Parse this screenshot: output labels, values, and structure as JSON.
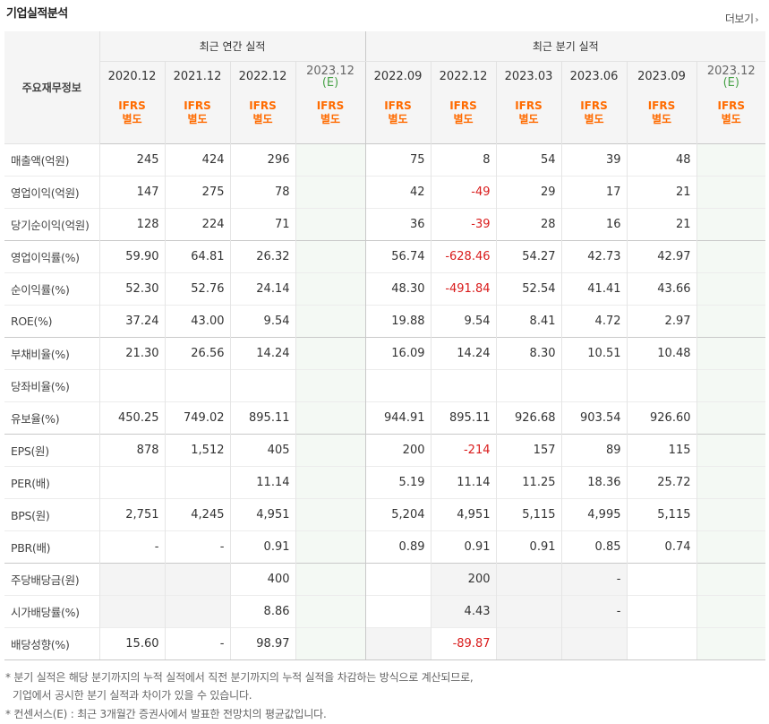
{
  "header": {
    "title": "기업실적분석",
    "more_label": "더보기",
    "more_arrow": "›"
  },
  "table": {
    "label_header": "주요재무정보",
    "groups": [
      "최근 연간 실적",
      "최근 분기 실적"
    ],
    "periods": [
      {
        "p": "2020.12",
        "e": ""
      },
      {
        "p": "2021.12",
        "e": ""
      },
      {
        "p": "2022.12",
        "e": ""
      },
      {
        "p": "2023.12",
        "e": "(E)"
      },
      {
        "p": "2022.09",
        "e": ""
      },
      {
        "p": "2022.12",
        "e": ""
      },
      {
        "p": "2023.03",
        "e": ""
      },
      {
        "p": "2023.06",
        "e": ""
      },
      {
        "p": "2023.09",
        "e": ""
      },
      {
        "p": "2023.12",
        "e": "(E)"
      }
    ],
    "ifrs": [
      "IFRS",
      "IFRS",
      "IFRS",
      "IFRS",
      "IFRS",
      "IFRS",
      "IFRS",
      "IFRS",
      "IFRS",
      "IFRS"
    ],
    "ifrs_sub": "별도",
    "rows": [
      {
        "label": "매출액(억원)",
        "values": [
          "245",
          "424",
          "296",
          "",
          "75",
          "8",
          "54",
          "39",
          "48",
          ""
        ]
      },
      {
        "label": "영업이익(억원)",
        "values": [
          "147",
          "275",
          "78",
          "",
          "42",
          "-49",
          "29",
          "17",
          "21",
          ""
        ]
      },
      {
        "label": "당기순이익(억원)",
        "values": [
          "128",
          "224",
          "71",
          "",
          "36",
          "-39",
          "28",
          "16",
          "21",
          ""
        ]
      },
      {
        "label": "영업이익률(%)",
        "values": [
          "59.90",
          "64.81",
          "26.32",
          "",
          "56.74",
          "-628.46",
          "54.27",
          "42.73",
          "42.97",
          ""
        ]
      },
      {
        "label": "순이익률(%)",
        "values": [
          "52.30",
          "52.76",
          "24.14",
          "",
          "48.30",
          "-491.84",
          "52.54",
          "41.41",
          "43.66",
          ""
        ]
      },
      {
        "label": "ROE(%)",
        "values": [
          "37.24",
          "43.00",
          "9.54",
          "",
          "19.88",
          "9.54",
          "8.41",
          "4.72",
          "2.97",
          ""
        ]
      },
      {
        "label": "부채비율(%)",
        "values": [
          "21.30",
          "26.56",
          "14.24",
          "",
          "16.09",
          "14.24",
          "8.30",
          "10.51",
          "10.48",
          ""
        ]
      },
      {
        "label": "당좌비율(%)",
        "values": [
          "",
          "",
          "",
          "",
          "",
          "",
          "",
          "",
          "",
          ""
        ]
      },
      {
        "label": "유보율(%)",
        "values": [
          "450.25",
          "749.02",
          "895.11",
          "",
          "944.91",
          "895.11",
          "926.68",
          "903.54",
          "926.60",
          ""
        ]
      },
      {
        "label": "EPS(원)",
        "values": [
          "878",
          "1,512",
          "405",
          "",
          "200",
          "-214",
          "157",
          "89",
          "115",
          ""
        ]
      },
      {
        "label": "PER(배)",
        "values": [
          "",
          "",
          "11.14",
          "",
          "5.19",
          "11.14",
          "11.25",
          "18.36",
          "25.72",
          ""
        ]
      },
      {
        "label": "BPS(원)",
        "values": [
          "2,751",
          "4,245",
          "4,951",
          "",
          "5,204",
          "4,951",
          "5,115",
          "4,995",
          "5,115",
          ""
        ]
      },
      {
        "label": "PBR(배)",
        "values": [
          "-",
          "-",
          "0.91",
          "",
          "0.89",
          "0.91",
          "0.91",
          "0.85",
          "0.74",
          ""
        ]
      },
      {
        "label": "주당배당금(원)",
        "values": [
          "",
          "",
          "400",
          "",
          "",
          "200",
          "",
          "-",
          "",
          ""
        ]
      },
      {
        "label": "시가배당률(%)",
        "values": [
          "",
          "",
          "8.86",
          "",
          "",
          "4.43",
          "",
          "-",
          "",
          ""
        ]
      },
      {
        "label": "배당성향(%)",
        "values": [
          "15.60",
          "-",
          "98.97",
          "",
          "",
          "-89.87",
          "",
          "",
          "",
          ""
        ]
      }
    ]
  },
  "notes": [
    "* 분기 실적은 해당 분기까지의 누적 실적에서 직전 분기까지의 누적 실적을 차감하는 방식으로 계산되므로,",
    "기업에서 공시한 분기 실적과 차이가 있을 수 있습니다.",
    "* 컨센서스(E) : 최근 3개월간 증권사에서 발표한 전망치의 평균값입니다."
  ]
}
